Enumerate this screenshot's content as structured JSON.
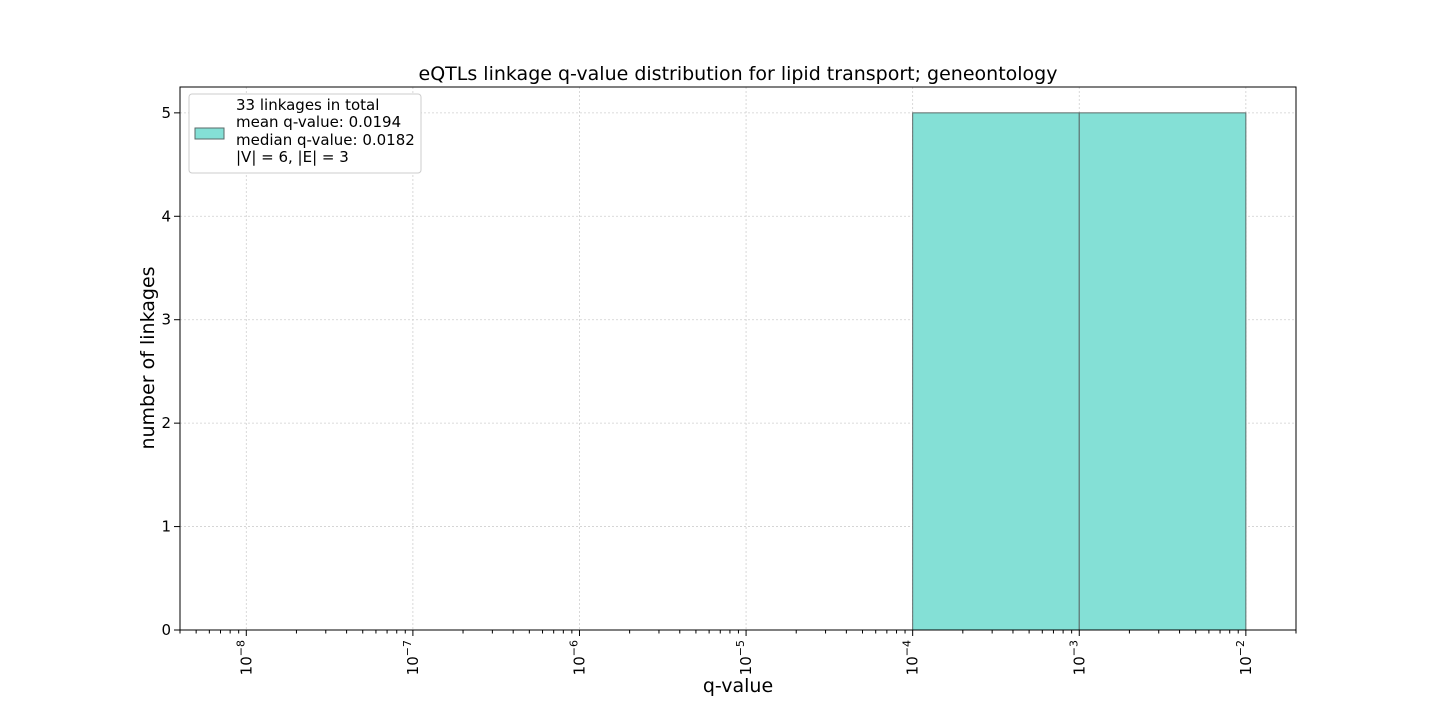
{
  "chart_data": {
    "type": "bar",
    "title": "eQTLs linkage q-value distribution for lipid transport; geneontology",
    "xlabel": "q-value",
    "ylabel": "number of linkages",
    "x_scale": "log",
    "xlim": [
      4e-09,
      0.02
    ],
    "ylim": [
      0,
      5.25
    ],
    "grid": true,
    "x_ticks": [
      {
        "value": 1e-08,
        "base": "10",
        "exp": "−8"
      },
      {
        "value": 1e-07,
        "base": "10",
        "exp": "−7"
      },
      {
        "value": 1e-06,
        "base": "10",
        "exp": "−6"
      },
      {
        "value": 1e-05,
        "base": "10",
        "exp": "−5"
      },
      {
        "value": 0.0001,
        "base": "10",
        "exp": "−4"
      },
      {
        "value": 0.001,
        "base": "10",
        "exp": "−3"
      },
      {
        "value": 0.01,
        "base": "10",
        "exp": "−2"
      }
    ],
    "y_ticks": [
      {
        "value": 0,
        "label": "0"
      },
      {
        "value": 1,
        "label": "1"
      },
      {
        "value": 2,
        "label": "2"
      },
      {
        "value": 3,
        "label": "3"
      },
      {
        "value": 4,
        "label": "4"
      },
      {
        "value": 5,
        "label": "5"
      }
    ],
    "bins": [
      {
        "x0": 0.0001,
        "x1": 0.001,
        "count": 5
      },
      {
        "x0": 0.001,
        "x1": 0.01,
        "count": 5
      }
    ],
    "bar_color": "#84e0d6",
    "bar_edge_color": "#5a6a68",
    "legend": {
      "placement": "top-left",
      "lines": [
        "33 linkages in total",
        "mean q-value: 0.0194",
        "median q-value: 0.0182",
        "|V| = 6, |E| = 3"
      ]
    }
  }
}
